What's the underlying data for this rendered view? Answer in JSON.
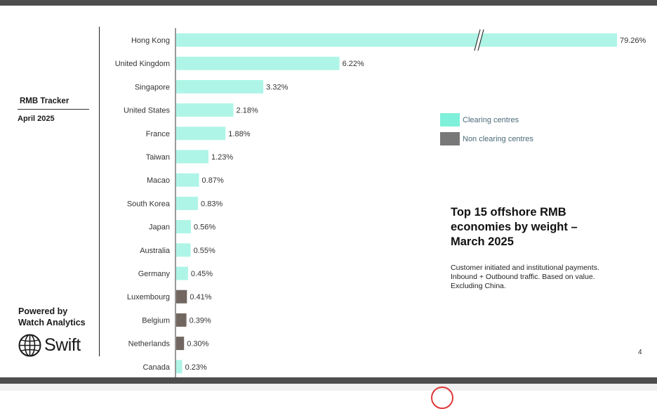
{
  "sidebar": {
    "tracker_title": "RMB Tracker",
    "tracker_date": "April 2025",
    "powered_line1": "Powered by",
    "powered_line2": "Watch Analytics",
    "brand": "Swift"
  },
  "legend": {
    "clearing_label": "Clearing centres",
    "non_clearing_label": "Non clearing centres"
  },
  "colors": {
    "clearing": "#aef5e7",
    "non_clearing": "#716660",
    "clearing_legend": "#7ff0da",
    "non_clearing_legend": "#787878"
  },
  "page_number": "4",
  "chart_data": {
    "type": "bar",
    "orientation": "horizontal",
    "title": "Top 15 offshore RMB economies by weight – March 2025",
    "subtitle": "Customer initiated and institutional payments. Inbound + Outbound traffic. Based on value. Excluding China.",
    "axis_break": true,
    "categories": [
      "Hong Kong",
      "United Kingdom",
      "Singapore",
      "United States",
      "France",
      "Taiwan",
      "Macao",
      "South Korea",
      "Japan",
      "Australia",
      "Germany",
      "Luxembourg",
      "Belgium",
      "Netherlands",
      "Canada"
    ],
    "values": [
      79.26,
      6.22,
      3.32,
      2.18,
      1.88,
      1.23,
      0.87,
      0.83,
      0.56,
      0.55,
      0.45,
      0.41,
      0.39,
      0.3,
      0.23
    ],
    "value_labels": [
      "79.26%",
      "6.22%",
      "3.32%",
      "2.18%",
      "1.88%",
      "1.23%",
      "0.87%",
      "0.83%",
      "0.56%",
      "0.55%",
      "0.45%",
      "0.41%",
      "0.39%",
      "0.30%",
      "0.23%"
    ],
    "group": [
      "clearing",
      "clearing",
      "clearing",
      "clearing",
      "clearing",
      "clearing",
      "clearing",
      "clearing",
      "clearing",
      "clearing",
      "clearing",
      "non_clearing",
      "non_clearing",
      "non_clearing",
      "clearing"
    ]
  }
}
